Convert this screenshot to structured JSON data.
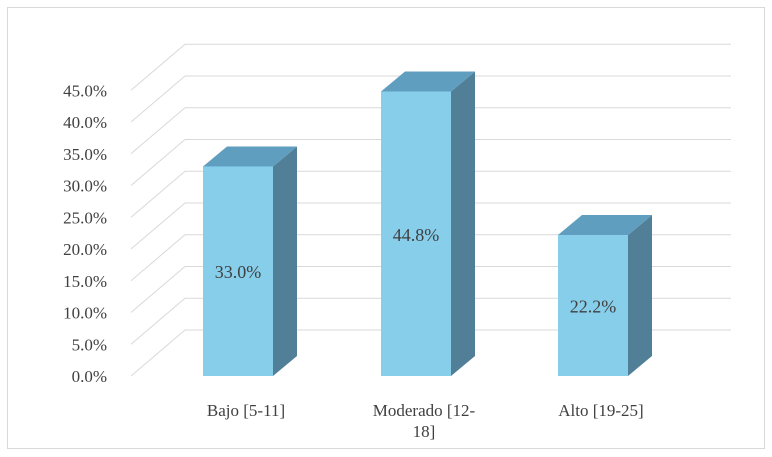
{
  "chart_data": {
    "type": "bar",
    "title": "",
    "xlabel": "",
    "ylabel": "",
    "categories": [
      "Bajo [5-11]",
      "Moderado [12-18]",
      "Alto [19-25]"
    ],
    "category_lines": [
      [
        "Bajo [5-11]"
      ],
      [
        "Moderado [12-",
        "18]"
      ],
      [
        "Alto [19-25]"
      ]
    ],
    "values": [
      33.0,
      44.8,
      22.2
    ],
    "data_labels": [
      "33.0%",
      "44.8%",
      "22.2%"
    ],
    "ylim": [
      0,
      45
    ],
    "ytick_values": [
      0,
      5,
      10,
      15,
      20,
      25,
      30,
      35,
      40,
      45
    ],
    "ytick_labels": [
      "0.0%",
      "5.0%",
      "10.0%",
      "15.0%",
      "20.0%",
      "25.0%",
      "30.0%",
      "35.0%",
      "40.0%",
      "45.0%"
    ],
    "grid": true,
    "style": "3d-column",
    "colors": {
      "front": "#87CEEB",
      "top": "#5F9EBF",
      "side": "#527F98",
      "grid": "#D9D9D9",
      "text": "#404040"
    }
  }
}
